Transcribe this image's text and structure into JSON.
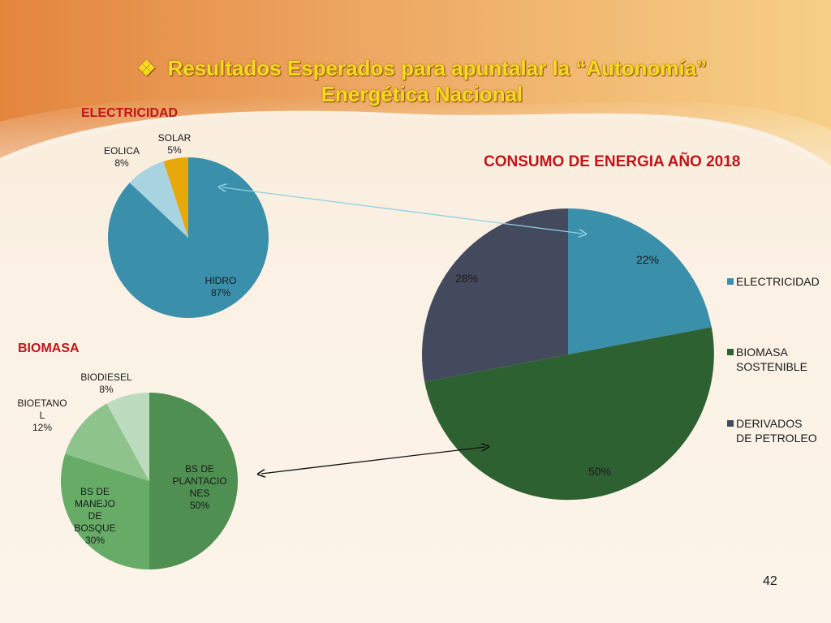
{
  "slide": {
    "title_line1": "Resultados Esperados para apuntalar la “Autonomía”",
    "title_line2": "Energética Nacional",
    "title_bullet": "❖",
    "page_number": "42"
  },
  "colors": {
    "title": "#f3dc1e",
    "heading": "#c0141a",
    "accent_orange": "#e8914a"
  },
  "chart_data": [
    {
      "type": "pie",
      "title": "ELECTRICIDAD",
      "slices": [
        {
          "label": "HIDRO",
          "percent": "87%",
          "value": 87,
          "color": "#3a8fab"
        },
        {
          "label": "EOLICA",
          "percent": "8%",
          "value": 8,
          "color": "#a8d4e2"
        },
        {
          "label": "SOLAR",
          "percent": "5%",
          "value": 5,
          "color": "#e8a80c"
        }
      ]
    },
    {
      "type": "pie",
      "title": "BIOMASA",
      "slices": [
        {
          "label": "BS DE PLANTACIONES",
          "label_lines": [
            "BS DE",
            "PLANTACIO",
            "NES"
          ],
          "percent": "50%",
          "value": 50,
          "color": "#4f8f52"
        },
        {
          "label": "BS DE MANEJO DE BOSQUE",
          "label_lines": [
            "BS DE",
            "MANEJO",
            "DE",
            "BOSQUE"
          ],
          "percent": "30%",
          "value": 30,
          "color": "#66ac66"
        },
        {
          "label": "BIOETANOL",
          "label_lines": [
            "BIOETANO",
            "L"
          ],
          "percent": "12%",
          "value": 12,
          "color": "#8ec48c"
        },
        {
          "label": "BIODIESEL",
          "label_lines": [
            "BIODIESEL"
          ],
          "percent": "8%",
          "value": 8,
          "color": "#bddcbf"
        }
      ]
    },
    {
      "type": "pie",
      "title": "CONSUMO DE ENERGIA AÑO 2018",
      "legend_position": "right",
      "slices": [
        {
          "label": "ELECTRICIDAD",
          "percent": "22%",
          "value": 22,
          "color": "#3a8fab"
        },
        {
          "label": "BIOMASA SOSTENIBLE",
          "legend_lines": [
            "BIOMASA",
            "SOSTENIBLE"
          ],
          "percent": "50%",
          "value": 50,
          "color": "#2e6131"
        },
        {
          "label": "DERIVADOS DE PETROLEO",
          "legend_lines": [
            "DERIVADOS",
            "DE PETROLEO"
          ],
          "percent": "28%",
          "value": 28,
          "color": "#434a5d"
        }
      ]
    }
  ]
}
